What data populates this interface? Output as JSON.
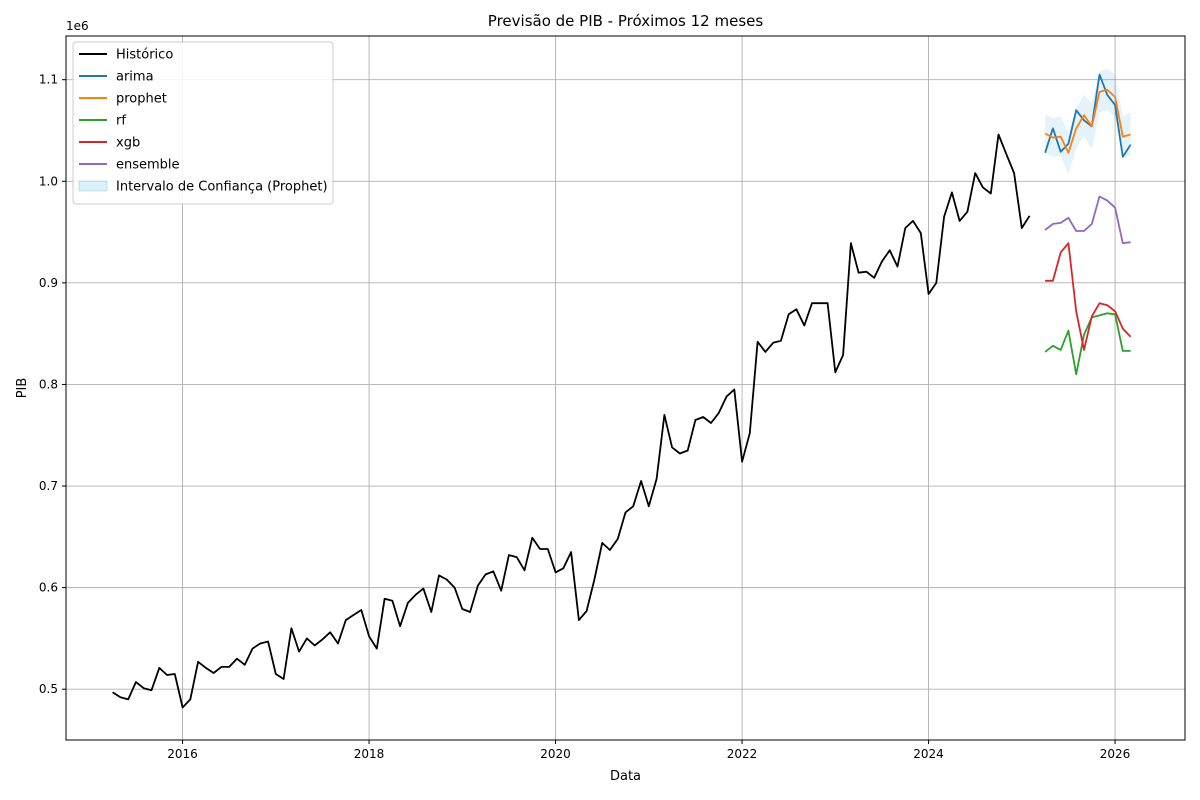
{
  "chart_data": {
    "type": "line",
    "title": "Previsão de PIB - Próximos 12 meses",
    "xlabel": "Data",
    "ylabel": "PIB",
    "y_offset_label": "1e6",
    "xlim": [
      2014.75,
      2026.75
    ],
    "ylim": [
      450000,
      1143000
    ],
    "x_ticks": [
      2016,
      2018,
      2020,
      2022,
      2024,
      2026
    ],
    "y_ticks": [
      500000,
      600000,
      700000,
      800000,
      900000,
      1000000,
      1100000
    ],
    "y_tick_labels": [
      "0.5",
      "0.6",
      "0.7",
      "0.8",
      "0.9",
      "1.0",
      "1.1"
    ],
    "grid": true,
    "legend_position": "upper left",
    "series": [
      {
        "name": "Histórico",
        "color": "#000000",
        "x": [
          2015.25,
          2015.333,
          2015.417,
          2015.5,
          2015.583,
          2015.667,
          2015.75,
          2015.833,
          2015.917,
          2016.0,
          2016.083,
          2016.167,
          2016.25,
          2016.333,
          2016.417,
          2016.5,
          2016.583,
          2016.667,
          2016.75,
          2016.833,
          2016.917,
          2017.0,
          2017.083,
          2017.167,
          2017.25,
          2017.333,
          2017.417,
          2017.5,
          2017.583,
          2017.667,
          2017.75,
          2017.833,
          2017.917,
          2018.0,
          2018.083,
          2018.167,
          2018.25,
          2018.333,
          2018.417,
          2018.5,
          2018.583,
          2018.667,
          2018.75,
          2018.833,
          2018.917,
          2019.0,
          2019.083,
          2019.167,
          2019.25,
          2019.333,
          2019.417,
          2019.5,
          2019.583,
          2019.667,
          2019.75,
          2019.833,
          2019.917,
          2020.0,
          2020.083,
          2020.167,
          2020.25,
          2020.333,
          2020.417,
          2020.5,
          2020.583,
          2020.667,
          2020.75,
          2020.833,
          2020.917,
          2021.0,
          2021.083,
          2021.167,
          2021.25,
          2021.333,
          2021.417,
          2021.5,
          2021.583,
          2021.667,
          2021.75,
          2021.833,
          2021.917,
          2022.0,
          2022.083,
          2022.167,
          2022.25,
          2022.333,
          2022.417,
          2022.5,
          2022.583,
          2022.667,
          2022.75,
          2022.833,
          2022.917,
          2023.0,
          2023.083,
          2023.167,
          2023.25,
          2023.333,
          2023.417,
          2023.5,
          2023.583,
          2023.667,
          2023.75,
          2023.833,
          2023.917,
          2024.0,
          2024.083,
          2024.167,
          2024.25,
          2024.333,
          2024.417,
          2024.5,
          2024.583,
          2024.667,
          2024.75,
          2024.833,
          2024.917,
          2025.0,
          2025.083
        ],
        "values": [
          497000,
          492000,
          490000,
          507000,
          501000,
          499000,
          521000,
          514000,
          515000,
          482000,
          490000,
          527000,
          521000,
          516000,
          522000,
          522000,
          530000,
          524000,
          540000,
          545000,
          547000,
          515000,
          510000,
          560000,
          537000,
          550000,
          543000,
          549000,
          556000,
          545000,
          568000,
          573000,
          578000,
          552000,
          540000,
          589000,
          587000,
          562000,
          585000,
          593000,
          599000,
          576000,
          612000,
          608000,
          600000,
          579000,
          576000,
          602000,
          613000,
          616000,
          597000,
          632000,
          630000,
          617000,
          649000,
          638000,
          638000,
          615000,
          619000,
          635000,
          568000,
          577000,
          608000,
          644000,
          637000,
          648000,
          674000,
          680000,
          705000,
          680000,
          707000,
          770000,
          738000,
          732000,
          735000,
          765000,
          768000,
          762000,
          772000,
          788000,
          795000,
          724000,
          752000,
          842000,
          832000,
          841000,
          843000,
          869000,
          874000,
          858000,
          880000,
          880000,
          880000,
          812000,
          829000,
          939000,
          910000,
          911000,
          905000,
          921000,
          932000,
          916000,
          954000,
          961000,
          949000,
          889000,
          900000,
          965000,
          989000,
          961000,
          970000,
          1008000,
          994000,
          988000,
          1046000,
          1027000,
          1008000,
          954000,
          966000
        ]
      },
      {
        "name": "arima",
        "color": "#1f77b4",
        "x": [
          2025.25,
          2025.333,
          2025.417,
          2025.5,
          2025.583,
          2025.667,
          2025.75,
          2025.833,
          2025.917,
          2026.0,
          2026.083,
          2026.167
        ],
        "values": [
          1028000,
          1052000,
          1029000,
          1037000,
          1070000,
          1060000,
          1054000,
          1105000,
          1085000,
          1075000,
          1024000,
          1036000
        ]
      },
      {
        "name": "prophet",
        "color": "#ff7f0e",
        "x": [
          2025.25,
          2025.333,
          2025.417,
          2025.5,
          2025.583,
          2025.667,
          2025.75,
          2025.833,
          2025.917,
          2026.0,
          2026.083,
          2026.167
        ],
        "values": [
          1047000,
          1043000,
          1044000,
          1028000,
          1052000,
          1065000,
          1054000,
          1088000,
          1090000,
          1083000,
          1044000,
          1046000
        ]
      },
      {
        "name": "rf",
        "color": "#2ca02c",
        "x": [
          2025.25,
          2025.333,
          2025.417,
          2025.5,
          2025.583,
          2025.667,
          2025.75,
          2025.833,
          2025.917,
          2026.0,
          2026.083,
          2026.167
        ],
        "values": [
          832000,
          838000,
          834000,
          853000,
          810000,
          849000,
          866000,
          868000,
          870000,
          869000,
          833000,
          833000
        ]
      },
      {
        "name": "xgb",
        "color": "#d62728",
        "x": [
          2025.25,
          2025.333,
          2025.417,
          2025.5,
          2025.583,
          2025.667,
          2025.75,
          2025.833,
          2025.917,
          2026.0,
          2026.083,
          2026.167
        ],
        "values": [
          902000,
          902000,
          930000,
          939000,
          872000,
          834000,
          867000,
          880000,
          878000,
          872000,
          855000,
          847000
        ]
      },
      {
        "name": "ensemble",
        "color": "#9467bd",
        "x": [
          2025.25,
          2025.333,
          2025.417,
          2025.5,
          2025.583,
          2025.667,
          2025.75,
          2025.833,
          2025.917,
          2026.0,
          2026.083,
          2026.167
        ],
        "values": [
          952000,
          958000,
          959000,
          964000,
          951000,
          951000,
          958000,
          985000,
          981000,
          974000,
          939000,
          940000
        ]
      }
    ],
    "confidence_band": {
      "name": "Intervalo de Confiança (Prophet)",
      "color": "#1f9bd6",
      "x": [
        2025.25,
        2025.333,
        2025.417,
        2025.5,
        2025.583,
        2025.667,
        2025.75,
        2025.833,
        2025.917,
        2026.0,
        2026.083,
        2026.167
      ],
      "lower": [
        1028000,
        1024000,
        1025000,
        1007000,
        1032000,
        1045000,
        1031000,
        1068000,
        1070000,
        1063000,
        1024000,
        1026000
      ],
      "upper": [
        1066000,
        1062000,
        1064000,
        1048000,
        1072000,
        1085000,
        1077000,
        1108000,
        1111000,
        1105000,
        1064000,
        1068000
      ]
    }
  }
}
